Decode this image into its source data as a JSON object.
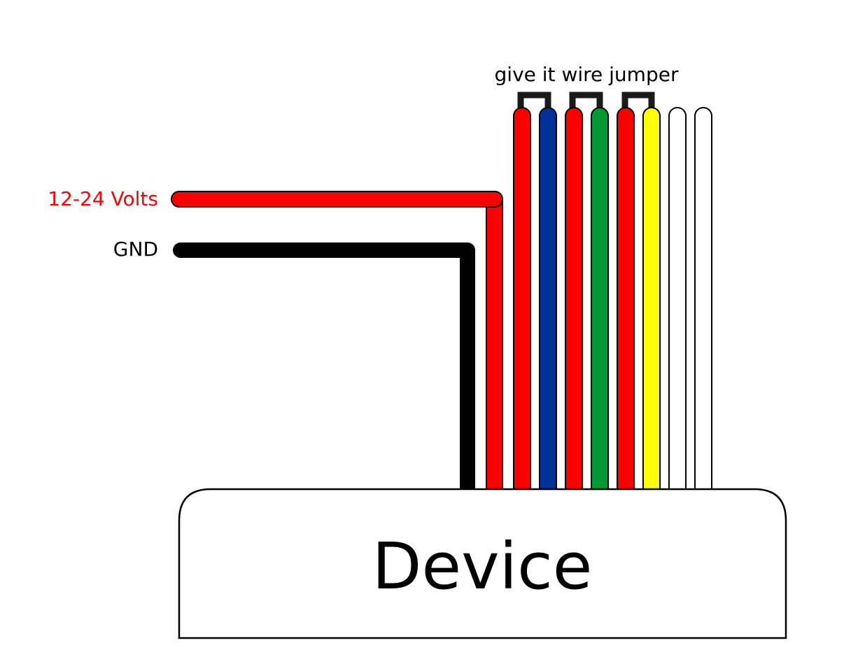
{
  "labels": {
    "volts": "12-24 Volts",
    "gnd": "GND",
    "jumper_note": "give it wire jumper",
    "device": "Device"
  },
  "colors": {
    "volts_text": "#ff0000",
    "text": "#000000",
    "red": "#ff0000",
    "blue": "#003399",
    "green": "#009933",
    "yellow": "#ffff00",
    "white": "#ffffff",
    "black": "#000000",
    "jumper": "#1a1a1a"
  },
  "wires": [
    {
      "id": "wire-red-1",
      "color": "red"
    },
    {
      "id": "wire-blue",
      "color": "blue"
    },
    {
      "id": "wire-red-2",
      "color": "red"
    },
    {
      "id": "wire-green",
      "color": "green"
    },
    {
      "id": "wire-red-3",
      "color": "red"
    },
    {
      "id": "wire-yellow",
      "color": "yellow"
    },
    {
      "id": "wire-white-1",
      "color": "white"
    },
    {
      "id": "wire-white-2",
      "color": "white"
    }
  ],
  "jumpers": [
    {
      "id": "jumper-1",
      "from": "wire-red-1",
      "to": "wire-blue"
    },
    {
      "id": "jumper-2",
      "from": "wire-red-2",
      "to": "wire-green"
    },
    {
      "id": "jumper-3",
      "from": "wire-red-3",
      "to": "wire-yellow"
    }
  ]
}
